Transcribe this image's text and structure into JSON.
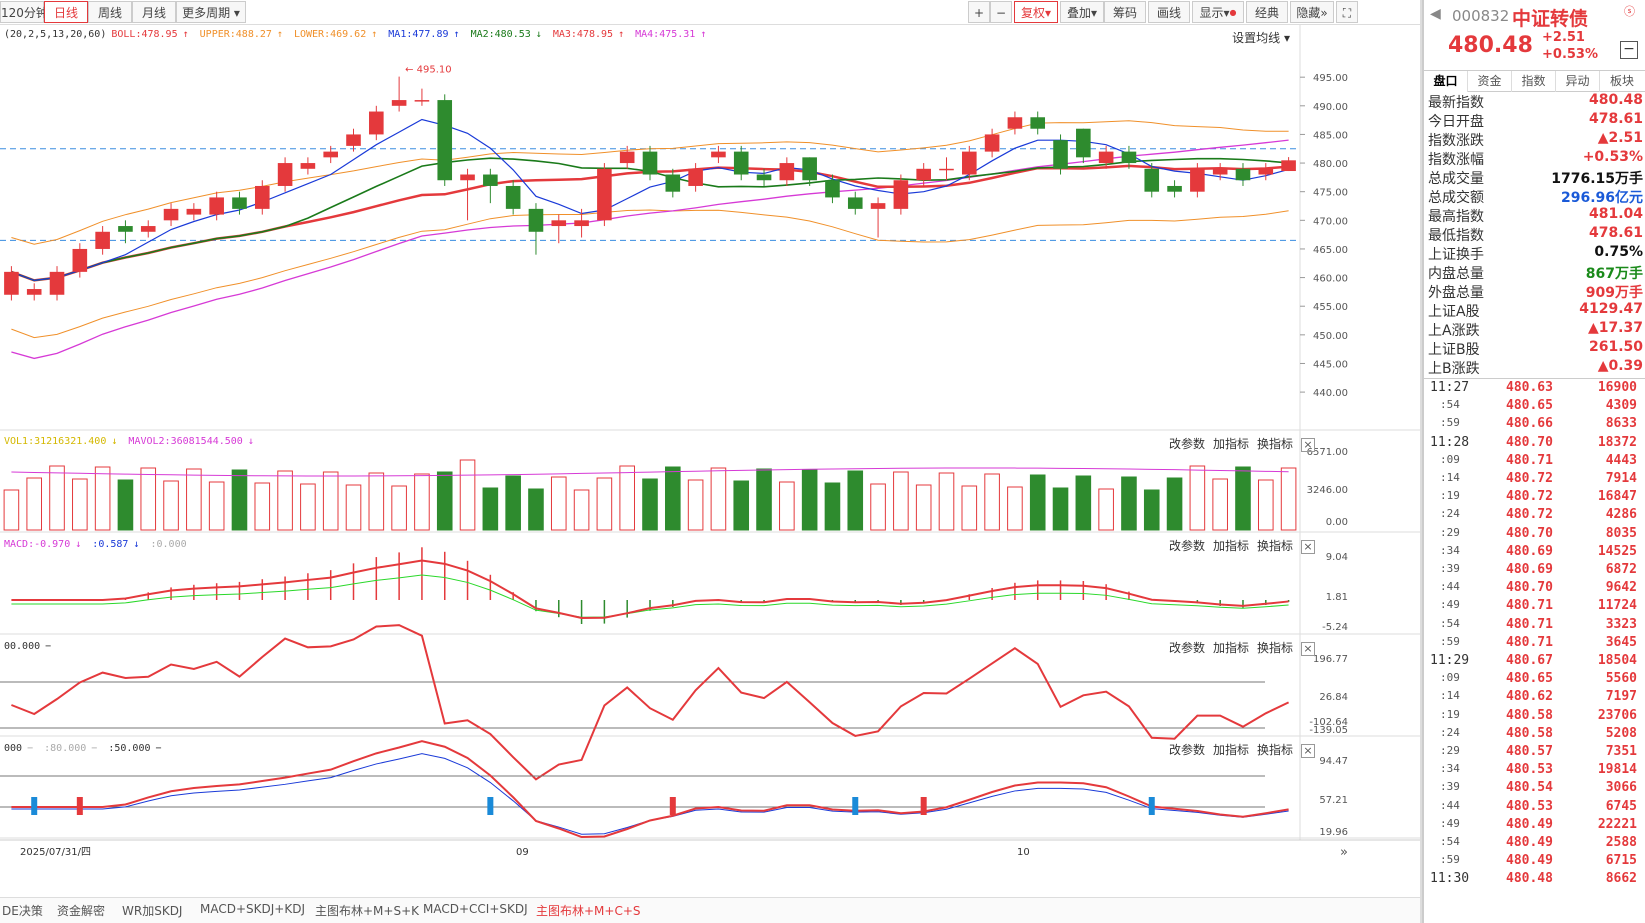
{
  "toolbar": {
    "period_120": "120分钟",
    "daily": "日线",
    "weekly": "周线",
    "monthly": "月线",
    "more_period": "更多周期",
    "plus": "+",
    "minus": "−",
    "rehab": "复权",
    "overlay": "叠加",
    "chips": "筹码",
    "draw": "画线",
    "display": "显示",
    "classic": "经典",
    "hide": "隐藏"
  },
  "main_indicator": {
    "params": "(20,2,5,13,20,60)",
    "boll": "BOLL:478.95",
    "upper": "UPPER:488.27",
    "lower": "LOWER:469.62",
    "ma1": "MA1:477.89",
    "ma2": "MA2:480.53",
    "ma3": "MA3:478.95",
    "ma4": "MA4:475.31",
    "ma_setting": "设置均线",
    "high_mark": "495.10"
  },
  "price_axis": [
    "495.00",
    "490.00",
    "485.00",
    "480.00",
    "475.00",
    "470.00",
    "465.00",
    "460.00",
    "455.00",
    "450.00",
    "445.00",
    "440.00"
  ],
  "volume_panel": {
    "vol1": "VOL1:31216321.400",
    "mavol2": "MAVOL2:36081544.500",
    "axis": [
      "6571.00",
      "3246.00",
      "0.00"
    ]
  },
  "macd_panel": {
    "macd": "MACD:-0.970",
    "dif": ":0.587",
    "dea": ":0.000",
    "axis": [
      "9.04",
      "1.81",
      "-5.24"
    ]
  },
  "cci_panel": {
    "label": "00.000",
    "axis": [
      "196.77",
      "26.84",
      "-102.64",
      "-139.05"
    ]
  },
  "kdj_panel": {
    "label1": "000",
    "label2": ":80.000",
    "label3": ":50.000",
    "axis": [
      "94.47",
      "57.21",
      "19.96"
    ]
  },
  "panel_actions": {
    "change_params": "改参数",
    "add_indicator": "加指标",
    "switch_indicator": "换指标",
    "close": "×"
  },
  "date_axis": {
    "first": "2025/07/31/四",
    "sep": "09",
    "oct": "10"
  },
  "bottom_tabs": [
    "DE决策",
    "资金解密",
    "WR加SKDJ",
    "MACD+SKDJ+KDJ",
    "主图布林+M+S+K",
    "MACD+CCI+SKDJ",
    "主图布林+M+C+S"
  ],
  "side": {
    "code": "000832",
    "name": "中证转债",
    "price": "480.48",
    "change": "+2.51",
    "change_pct": "+0.53%",
    "tabs": [
      "盘口",
      "资金",
      "指数",
      "异动",
      "板块"
    ],
    "stats": [
      {
        "k": "最新指数",
        "v": "480.48",
        "c": "red"
      },
      {
        "k": "今日开盘",
        "v": "478.61",
        "c": "red"
      },
      {
        "k": "指数涨跌",
        "v": "▲2.51",
        "c": "red"
      },
      {
        "k": "指数涨幅",
        "v": "+0.53%",
        "c": "red"
      },
      {
        "k": "总成交量",
        "v": "1776.15万手",
        "c": "black"
      },
      {
        "k": "总成交额",
        "v": "296.96亿元",
        "c": "blue"
      },
      {
        "k": "最高指数",
        "v": "481.04",
        "c": "red"
      },
      {
        "k": "最低指数",
        "v": "478.61",
        "c": "red"
      },
      {
        "k": "上证换手",
        "v": "0.75%",
        "c": "black"
      },
      {
        "k": "内盘总量",
        "v": "867万手",
        "c": "green"
      },
      {
        "k": "外盘总量",
        "v": "909万手",
        "c": "red"
      },
      {
        "k": "上证A股",
        "v": "4129.47",
        "c": "red"
      },
      {
        "k": "上A涨跌",
        "v": "▲17.37",
        "c": "red"
      },
      {
        "k": "上证B股",
        "v": "261.50",
        "c": "red"
      },
      {
        "k": "上B涨跌",
        "v": "▲0.39",
        "c": "red"
      }
    ],
    "ticks": [
      {
        "t": "11:27",
        "p": "480.63",
        "v": "16900"
      },
      {
        "t": ":54",
        "p": "480.65",
        "v": "4309"
      },
      {
        "t": ":59",
        "p": "480.66",
        "v": "8633"
      },
      {
        "t": "11:28",
        "p": "480.70",
        "v": "18372"
      },
      {
        "t": ":09",
        "p": "480.71",
        "v": "4443"
      },
      {
        "t": ":14",
        "p": "480.72",
        "v": "7914"
      },
      {
        "t": ":19",
        "p": "480.72",
        "v": "16847"
      },
      {
        "t": ":24",
        "p": "480.72",
        "v": "4286"
      },
      {
        "t": ":29",
        "p": "480.70",
        "v": "8035"
      },
      {
        "t": ":34",
        "p": "480.69",
        "v": "14525"
      },
      {
        "t": ":39",
        "p": "480.69",
        "v": "6872"
      },
      {
        "t": ":44",
        "p": "480.70",
        "v": "9642"
      },
      {
        "t": ":49",
        "p": "480.71",
        "v": "11724"
      },
      {
        "t": ":54",
        "p": "480.71",
        "v": "3323"
      },
      {
        "t": ":59",
        "p": "480.71",
        "v": "3645"
      },
      {
        "t": "11:29",
        "p": "480.67",
        "v": "18504"
      },
      {
        "t": ":09",
        "p": "480.65",
        "v": "5560"
      },
      {
        "t": ":14",
        "p": "480.62",
        "v": "7197"
      },
      {
        "t": ":19",
        "p": "480.58",
        "v": "23706"
      },
      {
        "t": ":24",
        "p": "480.58",
        "v": "5208"
      },
      {
        "t": ":29",
        "p": "480.57",
        "v": "7351"
      },
      {
        "t": ":34",
        "p": "480.53",
        "v": "19814"
      },
      {
        "t": ":39",
        "p": "480.54",
        "v": "3066"
      },
      {
        "t": ":44",
        "p": "480.53",
        "v": "6745"
      },
      {
        "t": ":49",
        "p": "480.49",
        "v": "22221"
      },
      {
        "t": ":54",
        "p": "480.49",
        "v": "2588"
      },
      {
        "t": ":59",
        "p": "480.49",
        "v": "6715"
      },
      {
        "t": "11:30",
        "p": "480.48",
        "v": "8662"
      }
    ]
  },
  "colors": {
    "up": "#e4393c",
    "down": "#2e8b2e",
    "ma1": "#1a3ad8",
    "ma2": "#1a7a1a",
    "ma3": "#e4393c",
    "ma4": "#d63ad6",
    "band": "#f0902a"
  },
  "chart_data": {
    "type": "candlestick",
    "candles": [
      {
        "o": 457,
        "c": 461,
        "h": 462,
        "l": 456
      },
      {
        "o": 457,
        "c": 458,
        "h": 459,
        "l": 456
      },
      {
        "o": 457,
        "c": 461,
        "h": 462,
        "l": 456
      },
      {
        "o": 461,
        "c": 465,
        "h": 466,
        "l": 460
      },
      {
        "o": 465,
        "c": 468,
        "h": 469,
        "l": 464
      },
      {
        "o": 469,
        "c": 468,
        "h": 470,
        "l": 466
      },
      {
        "o": 468,
        "c": 469,
        "h": 470,
        "l": 467
      },
      {
        "o": 470,
        "c": 472,
        "h": 473,
        "l": 469
      },
      {
        "o": 471,
        "c": 472,
        "h": 473,
        "l": 470
      },
      {
        "o": 471,
        "c": 474,
        "h": 475,
        "l": 470
      },
      {
        "o": 474,
        "c": 472,
        "h": 475,
        "l": 471
      },
      {
        "o": 472,
        "c": 476,
        "h": 477,
        "l": 471
      },
      {
        "o": 476,
        "c": 480,
        "h": 481,
        "l": 475
      },
      {
        "o": 479,
        "c": 480,
        "h": 481,
        "l": 478
      },
      {
        "o": 481,
        "c": 482,
        "h": 483,
        "l": 480
      },
      {
        "o": 483,
        "c": 485,
        "h": 486,
        "l": 482
      },
      {
        "o": 485,
        "c": 489,
        "h": 490,
        "l": 484
      },
      {
        "o": 490,
        "c": 491,
        "h": 495.1,
        "l": 489
      },
      {
        "o": 491,
        "c": 491,
        "h": 493,
        "l": 490
      },
      {
        "o": 491,
        "c": 477,
        "h": 492,
        "l": 476
      },
      {
        "o": 477,
        "c": 478,
        "h": 479,
        "l": 470
      },
      {
        "o": 478,
        "c": 476,
        "h": 479,
        "l": 473
      },
      {
        "o": 476,
        "c": 472,
        "h": 477,
        "l": 471
      },
      {
        "o": 472,
        "c": 468,
        "h": 473,
        "l": 464
      },
      {
        "o": 469,
        "c": 470,
        "h": 471,
        "l": 466
      },
      {
        "o": 469,
        "c": 470,
        "h": 472,
        "l": 467
      },
      {
        "o": 470,
        "c": 479,
        "h": 480,
        "l": 469
      },
      {
        "o": 480,
        "c": 482,
        "h": 483,
        "l": 479
      },
      {
        "o": 482,
        "c": 478,
        "h": 483,
        "l": 477
      },
      {
        "o": 478,
        "c": 475,
        "h": 479,
        "l": 474
      },
      {
        "o": 476,
        "c": 479,
        "h": 480,
        "l": 475
      },
      {
        "o": 481,
        "c": 482,
        "h": 483,
        "l": 480
      },
      {
        "o": 482,
        "c": 478,
        "h": 483,
        "l": 477
      },
      {
        "o": 478,
        "c": 477,
        "h": 479,
        "l": 476
      },
      {
        "o": 477,
        "c": 480,
        "h": 481,
        "l": 476
      },
      {
        "o": 481,
        "c": 477,
        "h": 481,
        "l": 476
      },
      {
        "o": 477,
        "c": 474,
        "h": 478,
        "l": 473
      },
      {
        "o": 474,
        "c": 472,
        "h": 475,
        "l": 471
      },
      {
        "o": 472,
        "c": 473,
        "h": 474,
        "l": 467
      },
      {
        "o": 472,
        "c": 477,
        "h": 478,
        "l": 471
      },
      {
        "o": 477,
        "c": 479,
        "h": 480,
        "l": 476
      },
      {
        "o": 479,
        "c": 479,
        "h": 481,
        "l": 477
      },
      {
        "o": 478,
        "c": 482,
        "h": 483,
        "l": 477
      },
      {
        "o": 482,
        "c": 485,
        "h": 486,
        "l": 481
      },
      {
        "o": 486,
        "c": 488,
        "h": 489,
        "l": 485
      },
      {
        "o": 488,
        "c": 486,
        "h": 489,
        "l": 485
      },
      {
        "o": 484,
        "c": 479,
        "h": 485,
        "l": 478
      },
      {
        "o": 486,
        "c": 481,
        "h": 486,
        "l": 480
      },
      {
        "o": 480,
        "c": 482,
        "h": 483,
        "l": 479
      },
      {
        "o": 482,
        "c": 480,
        "h": 483,
        "l": 479
      },
      {
        "o": 479,
        "c": 475,
        "h": 480,
        "l": 474
      },
      {
        "o": 476,
        "c": 475,
        "h": 477,
        "l": 474
      },
      {
        "o": 475,
        "c": 479,
        "h": 480,
        "l": 474
      },
      {
        "o": 478,
        "c": 479,
        "h": 480,
        "l": 477
      },
      {
        "o": 479,
        "c": 477,
        "h": 480,
        "l": 476
      },
      {
        "o": 478,
        "c": 479,
        "h": 480,
        "l": 477
      },
      {
        "o": 478.61,
        "c": 480.48,
        "h": 481.04,
        "l": 478.61
      }
    ],
    "ylim": [
      436,
      498
    ]
  }
}
